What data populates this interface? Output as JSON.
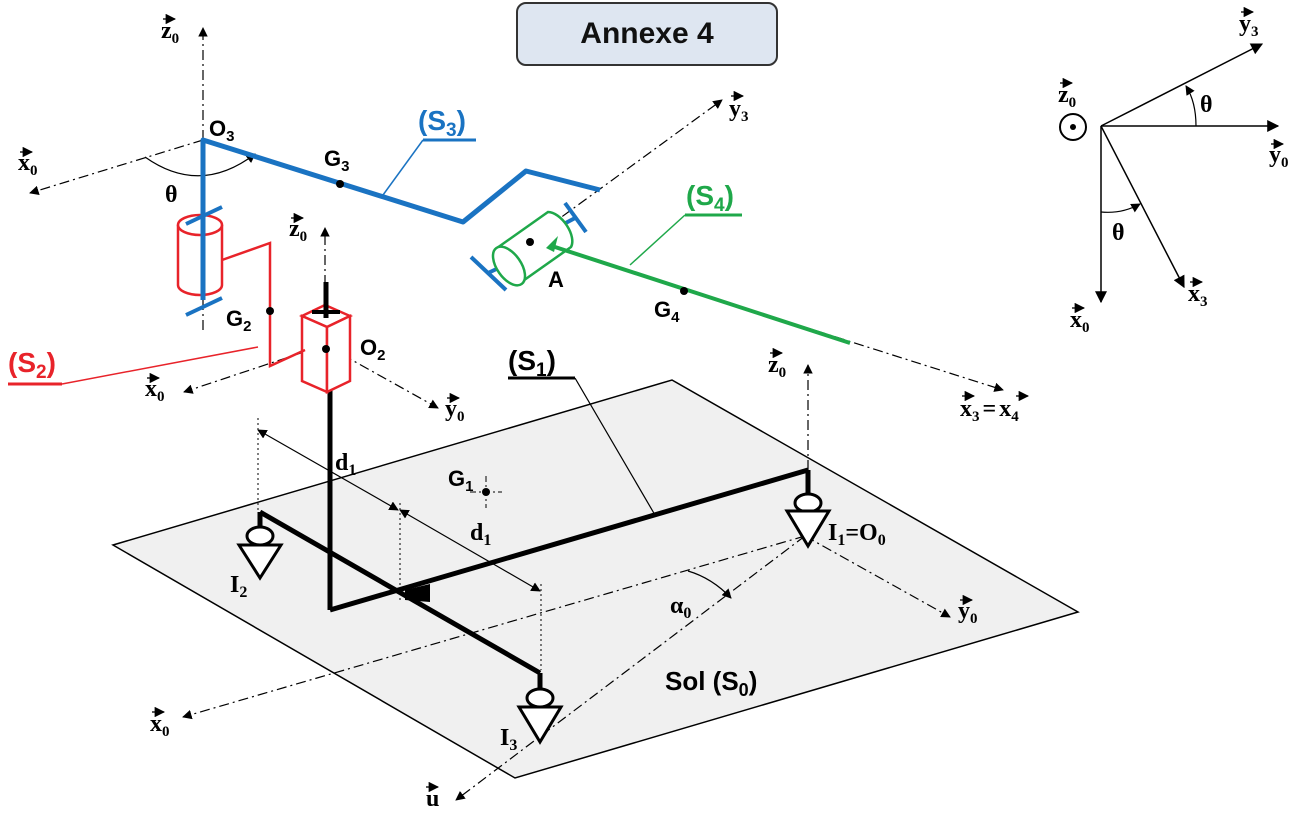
{
  "title": "Annexe 4",
  "labels": {
    "S1": "(S",
    "S1_sub": "1",
    "S1_close": ")",
    "S2": "(S",
    "S2_sub": "2",
    "S2_close": ")",
    "S3": "(S",
    "S3_sub": "3",
    "S3_close": ")",
    "S4": "(S",
    "S4_sub": "4",
    "S4_close": ")",
    "sol": "Sol (S",
    "sol_sub": "0",
    "sol_close": ")",
    "O3": "O",
    "O3_sub": "3",
    "G3": "G",
    "G3_sub": "3",
    "G2": "G",
    "G2_sub": "2",
    "O2": "O",
    "O2_sub": "2",
    "G4": "G",
    "G4_sub": "4",
    "G1": "G",
    "G1_sub": "1",
    "A": "A",
    "I1": "I",
    "I1_sub": "1",
    "I1_eq": "=O",
    "I1_eq_sub": "0",
    "I2": "I",
    "I2_sub": "2",
    "I3": "I",
    "I3_sub": "3",
    "d1a": "d",
    "d1a_sub": "1",
    "d1b": "d",
    "d1b_sub": "1",
    "theta": "θ",
    "alpha0": "α",
    "alpha0_sub": "0"
  },
  "vectors": {
    "z0": "z",
    "z0_sub": "0",
    "x0": "x",
    "x0_sub": "0",
    "y0": "y",
    "y0_sub": "0",
    "x3": "x",
    "x3_sub": "3",
    "y3": "y",
    "y3_sub": "3",
    "x4": "x",
    "x4_sub": "4",
    "u": "u",
    "eq": "="
  },
  "colors": {
    "S1": "#000000",
    "S2": "#e8232a",
    "S3": "#1a73c2",
    "S4": "#1fa84a",
    "ground": "#f0f0f0",
    "title_bg": "#dee6f1"
  }
}
